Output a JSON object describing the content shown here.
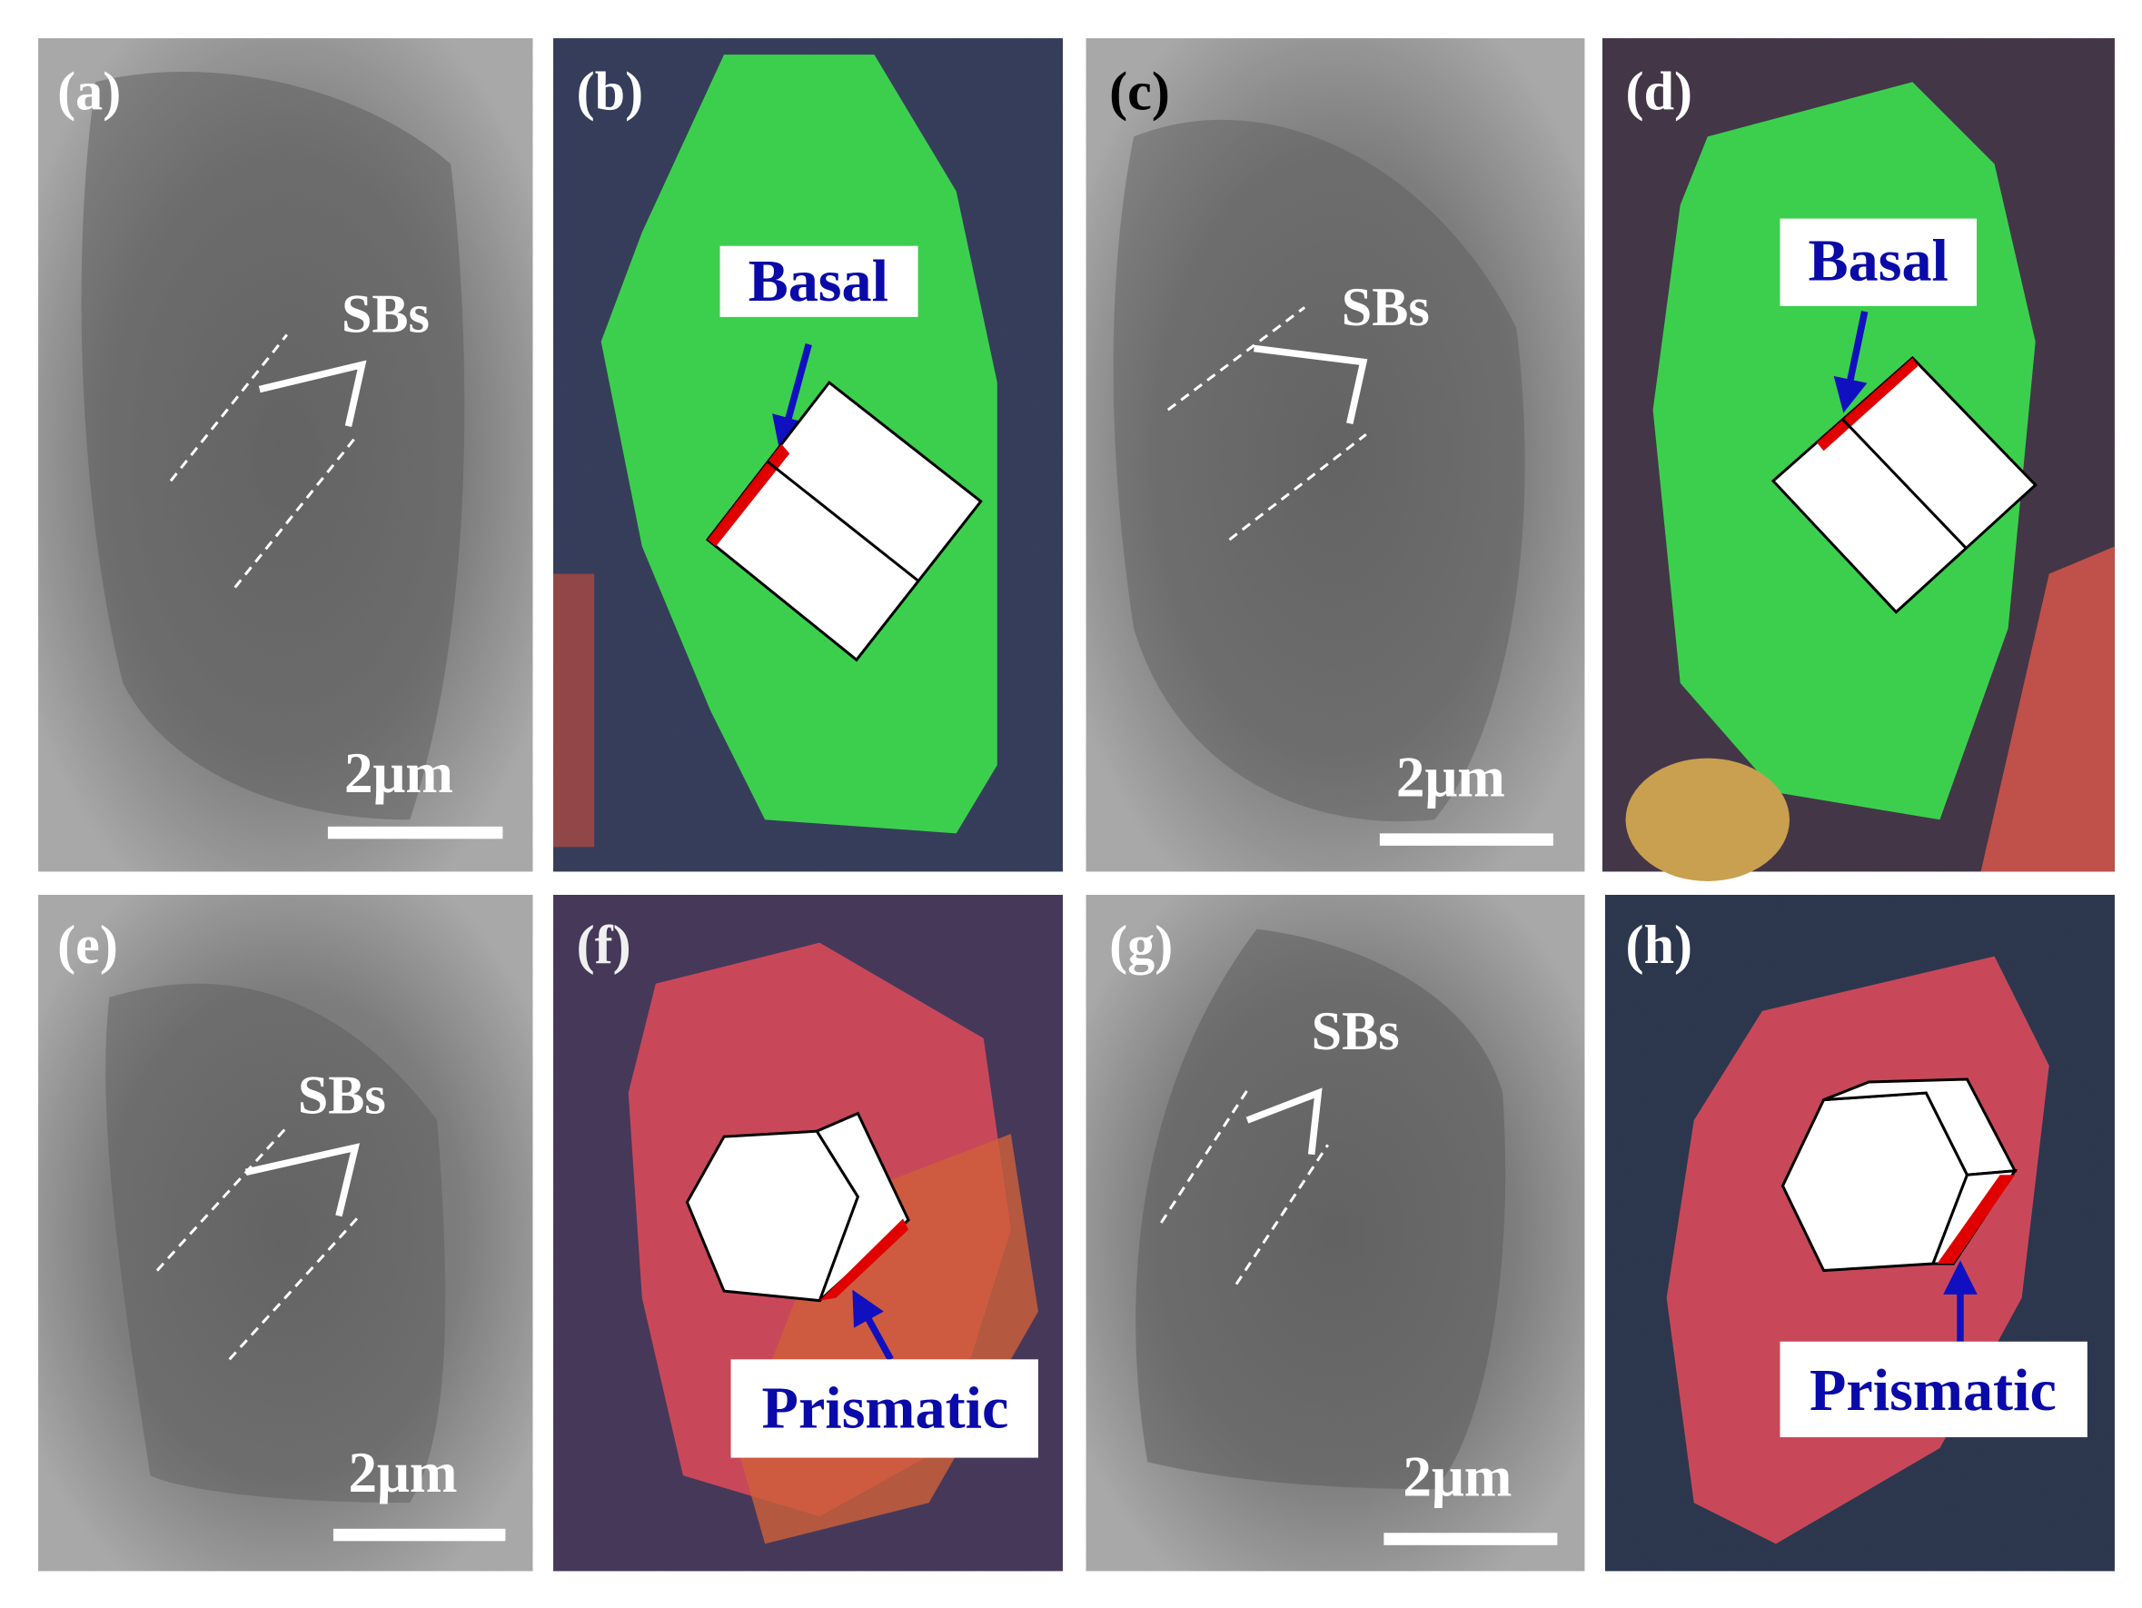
{
  "panels": [
    {
      "label": "(a)",
      "annotation": "SBs",
      "scale_bar": "2μm"
    },
    {
      "label": "(b)",
      "annotation": "Basal"
    },
    {
      "label": "(c)",
      "annotation": "SBs",
      "scale_bar": "2μm"
    },
    {
      "label": "(d)",
      "annotation": "Basal"
    },
    {
      "label": "(e)",
      "annotation": "SBs",
      "scale_bar": "2μm"
    },
    {
      "label": "(f)",
      "annotation": "Prismatic"
    },
    {
      "label": "(g)",
      "annotation": "SBs",
      "scale_bar": "2μm"
    },
    {
      "label": "(h)",
      "annotation": "Prismatic"
    }
  ]
}
